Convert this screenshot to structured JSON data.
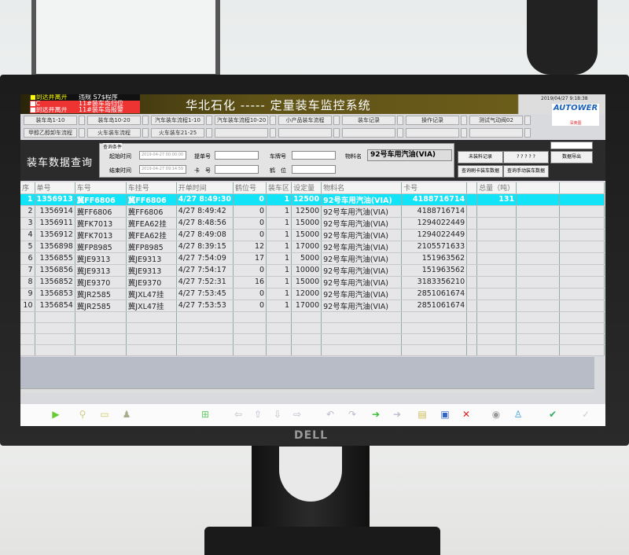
{
  "app": {
    "title": "华北石化 ----- 定量装车监控系统",
    "clock": "2019/04/27 9:18:38",
    "logo": "AUTOWER",
    "logo_sub": "深奥图",
    "brand": "DELL"
  },
  "alarms": [
    {
      "a": "■到达并离开",
      "b": "违规 S7$程序"
    },
    {
      "a": "■C",
      "b": "11#装车岛归位"
    },
    {
      "a": "■到达并离开",
      "b": "11#装车岛报警"
    }
  ],
  "nav": {
    "row1": [
      "装车岛1-10",
      "装车岛10-20",
      "汽车装车流程1-10",
      "汽车装车流程10-20",
      "小产品装车流程",
      "装车记录",
      "操作记录",
      "测试气动阀02"
    ],
    "row2": [
      "甲醇乙醇卸车流程",
      "火车装车流程",
      "火车装车21-25",
      "",
      "",
      "",
      "",
      ""
    ]
  },
  "query": {
    "page_title": "装车数据查询",
    "group_label": "查询条件",
    "start_label": "起始时间",
    "start_value": "2019-04-27 00:00:00",
    "end_label": "结束时间",
    "end_value": "2019-04-27 09:14:59",
    "bill_label": "提单号",
    "card_label": "卡　号",
    "plate_label": "车牌号",
    "crane_label": "鹤　位",
    "material_label": "物料名",
    "material_value": "92号车用汽油(VIA)",
    "buttons": [
      "未装料记录",
      "? ? ? ? ?",
      "查询刷卡装车数据",
      "查询手动装车数据"
    ],
    "export": "数据导出"
  },
  "table": {
    "headers": [
      "序",
      "单号",
      "车号",
      "车挂号",
      "开单时间",
      "鹤位号",
      "装车区",
      "设定量",
      "物料名",
      "卡号",
      "",
      "总量（吨）",
      "",
      ""
    ],
    "rows": [
      [
        "1",
        "1356913",
        "冀FF6806",
        "冀FF6806",
        "4/27 8:49:30",
        "0",
        "1",
        "12500",
        "92号车用汽油(VIA)",
        "4188716714",
        "",
        "131",
        "",
        ""
      ],
      [
        "2",
        "1356914",
        "冀FF6806",
        "冀FF6806",
        "4/27 8:49:42",
        "0",
        "1",
        "12500",
        "92号车用汽油(VIA)",
        "4188716714",
        "",
        "",
        "",
        ""
      ],
      [
        "3",
        "1356911",
        "冀FK7013",
        "冀FEA62挂",
        "4/27 8:48:56",
        "0",
        "1",
        "15000",
        "92号车用汽油(VIA)",
        "1294022449",
        "",
        "",
        "",
        ""
      ],
      [
        "4",
        "1356912",
        "冀FK7013",
        "冀FEA62挂",
        "4/27 8:49:08",
        "0",
        "1",
        "15000",
        "92号车用汽油(VIA)",
        "1294022449",
        "",
        "",
        "",
        ""
      ],
      [
        "5",
        "1356898",
        "冀FP8985",
        "冀FP8985",
        "4/27 8:39:15",
        "12",
        "1",
        "17000",
        "92号车用汽油(VIA)",
        "2105571633",
        "",
        "",
        "",
        ""
      ],
      [
        "6",
        "1356855",
        "冀JE9313",
        "冀JE9313",
        "4/27 7:54:09",
        "17",
        "1",
        "5000",
        "92号车用汽油(VIA)",
        "151963562",
        "",
        "",
        "",
        ""
      ],
      [
        "7",
        "1356856",
        "冀JE9313",
        "冀JE9313",
        "4/27 7:54:17",
        "0",
        "1",
        "10000",
        "92号车用汽油(VIA)",
        "151963562",
        "",
        "",
        "",
        ""
      ],
      [
        "8",
        "1356852",
        "冀JE9370",
        "冀JE9370",
        "4/27 7:52:31",
        "16",
        "1",
        "15000",
        "92号车用汽油(VIA)",
        "3183356210",
        "",
        "",
        "",
        ""
      ],
      [
        "9",
        "1356853",
        "冀JR2585",
        "冀JXL47挂",
        "4/27 7:53:45",
        "0",
        "1",
        "12000",
        "92号车用汽油(VIA)",
        "2851061674",
        "",
        "",
        "",
        ""
      ],
      [
        "10",
        "1356854",
        "冀JR2585",
        "冀JXL47挂",
        "4/27 7:53:53",
        "0",
        "1",
        "17000",
        "92号车用汽油(VIA)",
        "2851061674",
        "",
        "",
        "",
        ""
      ]
    ],
    "selected_row": 0,
    "highlight_color": "#12e3f7"
  },
  "toolbar": {
    "icons": [
      "play-icon",
      "filter-icon",
      "folder-icon",
      "user-icon",
      "add-record-icon",
      "nav-left-icon",
      "nav-up-icon",
      "nav-down-icon",
      "nav-right-icon",
      "undo-icon",
      "redo-icon",
      "import-icon",
      "export-icon",
      "open-file-icon",
      "save-file-icon",
      "delete-file-icon",
      "print-preview-icon",
      "bottle-icon",
      "check-icon",
      "confirm-icon"
    ]
  }
}
